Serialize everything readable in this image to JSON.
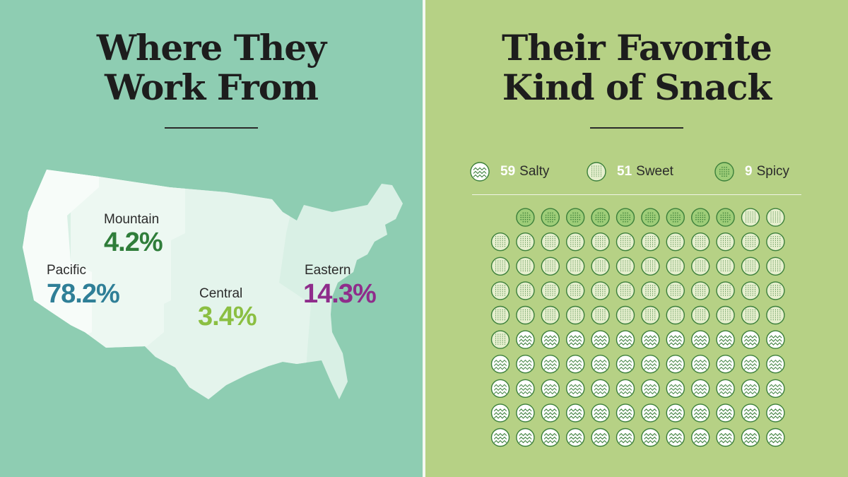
{
  "left_panel": {
    "title_line1": "Where They",
    "title_line2": "Work From",
    "zones": [
      {
        "name": "Mountain",
        "value": "4.2%",
        "color": "#2f7d3a"
      },
      {
        "name": "Pacific",
        "value": "78.2%",
        "color": "#2f7f97"
      },
      {
        "name": "Central",
        "value": "3.4%",
        "color": "#8bbf42"
      },
      {
        "name": "Eastern",
        "value": "14.3%",
        "color": "#8f2c8b"
      }
    ]
  },
  "right_panel": {
    "title_line1": "Their Favorite",
    "title_line2": "Kind of Snack",
    "legend": [
      {
        "count": "59",
        "label": "Salty",
        "pattern": "zigzag"
      },
      {
        "count": "51",
        "label": "Sweet",
        "pattern": "grid"
      },
      {
        "count": "9",
        "label": "Spicy",
        "pattern": "dots"
      }
    ],
    "grid_counts": {
      "salty": 59,
      "sweet": 51,
      "spicy": 9
    }
  },
  "colors": {
    "left_bg": "#8ecdb2",
    "right_bg": "#b6d185",
    "circle_stroke": "#3b7f3a",
    "salty_fill": "#ffffff",
    "sweet_fill": "#e6efce",
    "spicy_fill": "#9ecd78"
  }
}
